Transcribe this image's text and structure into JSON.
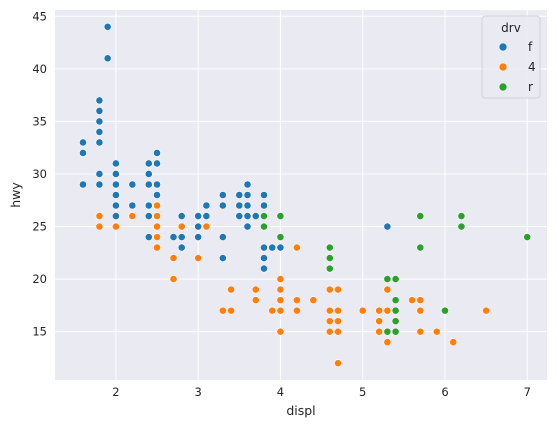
{
  "chart_data": {
    "type": "scatter",
    "title": "",
    "xlabel": "displ",
    "ylabel": "hwy",
    "xlim": [
      1.26,
      7.24
    ],
    "ylim": [
      10.4,
      45.6
    ],
    "xticks": [
      2,
      3,
      4,
      5,
      6,
      7
    ],
    "yticks": [
      15,
      20,
      25,
      30,
      35,
      40,
      45
    ],
    "grid": true,
    "legend": {
      "title": "drv",
      "position": "top-right"
    },
    "series": [
      {
        "name": "f",
        "color": "#1f77b4",
        "points": [
          [
            1.6,
            33
          ],
          [
            1.6,
            32
          ],
          [
            1.6,
            29
          ],
          [
            1.8,
            37
          ],
          [
            1.8,
            36
          ],
          [
            1.8,
            35
          ],
          [
            1.8,
            34
          ],
          [
            1.8,
            33
          ],
          [
            1.8,
            30
          ],
          [
            1.8,
            29
          ],
          [
            1.9,
            44
          ],
          [
            1.9,
            41
          ],
          [
            2.0,
            31
          ],
          [
            2.0,
            30
          ],
          [
            2.0,
            29
          ],
          [
            2.0,
            28
          ],
          [
            2.0,
            27
          ],
          [
            2.0,
            26
          ],
          [
            2.2,
            29
          ],
          [
            2.2,
            27
          ],
          [
            2.4,
            31
          ],
          [
            2.4,
            30
          ],
          [
            2.4,
            29
          ],
          [
            2.4,
            27
          ],
          [
            2.4,
            26
          ],
          [
            2.4,
            24
          ],
          [
            2.5,
            32
          ],
          [
            2.5,
            31
          ],
          [
            2.5,
            29
          ],
          [
            2.5,
            28
          ],
          [
            2.5,
            27
          ],
          [
            2.5,
            26
          ],
          [
            2.7,
            24
          ],
          [
            2.8,
            26
          ],
          [
            2.8,
            24
          ],
          [
            2.8,
            23
          ],
          [
            3.0,
            26
          ],
          [
            3.0,
            25
          ],
          [
            3.0,
            24
          ],
          [
            3.1,
            27
          ],
          [
            3.1,
            26
          ],
          [
            3.3,
            28
          ],
          [
            3.3,
            27
          ],
          [
            3.3,
            24
          ],
          [
            3.3,
            22
          ],
          [
            3.5,
            28
          ],
          [
            3.5,
            27
          ],
          [
            3.5,
            26
          ],
          [
            3.6,
            29
          ],
          [
            3.6,
            28
          ],
          [
            3.6,
            27
          ],
          [
            3.6,
            26
          ],
          [
            3.6,
            25
          ],
          [
            3.7,
            26
          ],
          [
            3.8,
            28
          ],
          [
            3.8,
            27
          ],
          [
            3.8,
            26
          ],
          [
            3.8,
            23
          ],
          [
            3.8,
            22
          ],
          [
            3.8,
            21
          ],
          [
            3.9,
            23
          ],
          [
            4.0,
            23
          ],
          [
            5.3,
            25
          ]
        ]
      },
      {
        "name": "4",
        "color": "#ff7f0e",
        "points": [
          [
            1.8,
            26
          ],
          [
            1.8,
            25
          ],
          [
            2.0,
            25
          ],
          [
            2.2,
            26
          ],
          [
            2.5,
            27
          ],
          [
            2.5,
            26
          ],
          [
            2.5,
            25
          ],
          [
            2.5,
            24
          ],
          [
            2.5,
            23
          ],
          [
            2.7,
            22
          ],
          [
            2.7,
            20
          ],
          [
            2.8,
            25
          ],
          [
            3.0,
            22
          ],
          [
            3.1,
            25
          ],
          [
            3.3,
            17
          ],
          [
            3.4,
            19
          ],
          [
            3.4,
            17
          ],
          [
            3.7,
            19
          ],
          [
            3.7,
            18
          ],
          [
            3.9,
            17
          ],
          [
            4.0,
            20
          ],
          [
            4.0,
            19
          ],
          [
            4.0,
            18
          ],
          [
            4.0,
            17
          ],
          [
            4.0,
            15
          ],
          [
            4.2,
            23
          ],
          [
            4.2,
            18
          ],
          [
            4.2,
            17
          ],
          [
            4.4,
            18
          ],
          [
            4.6,
            19
          ],
          [
            4.6,
            17
          ],
          [
            4.6,
            16
          ],
          [
            4.6,
            15
          ],
          [
            4.7,
            19
          ],
          [
            4.7,
            17
          ],
          [
            4.7,
            16
          ],
          [
            4.7,
            15
          ],
          [
            4.7,
            12
          ],
          [
            5.0,
            17
          ],
          [
            5.2,
            17
          ],
          [
            5.2,
            16
          ],
          [
            5.2,
            15
          ],
          [
            5.3,
            19
          ],
          [
            5.3,
            17
          ],
          [
            5.3,
            15
          ],
          [
            5.3,
            14
          ],
          [
            5.4,
            17
          ],
          [
            5.6,
            18
          ],
          [
            5.7,
            18
          ],
          [
            5.7,
            17
          ],
          [
            5.7,
            15
          ],
          [
            5.9,
            15
          ],
          [
            6.1,
            14
          ],
          [
            6.5,
            17
          ]
        ]
      },
      {
        "name": "r",
        "color": "#2ca02c",
        "points": [
          [
            3.8,
            26
          ],
          [
            3.8,
            25
          ],
          [
            4.0,
            26
          ],
          [
            4.0,
            24
          ],
          [
            4.6,
            23
          ],
          [
            4.6,
            22
          ],
          [
            4.6,
            21
          ],
          [
            5.3,
            20
          ],
          [
            5.3,
            15
          ],
          [
            5.4,
            20
          ],
          [
            5.4,
            18
          ],
          [
            5.4,
            17
          ],
          [
            5.4,
            16
          ],
          [
            5.4,
            15
          ],
          [
            5.7,
            26
          ],
          [
            5.7,
            23
          ],
          [
            6.0,
            17
          ],
          [
            6.2,
            26
          ],
          [
            6.2,
            25
          ],
          [
            7.0,
            24
          ]
        ]
      }
    ]
  }
}
